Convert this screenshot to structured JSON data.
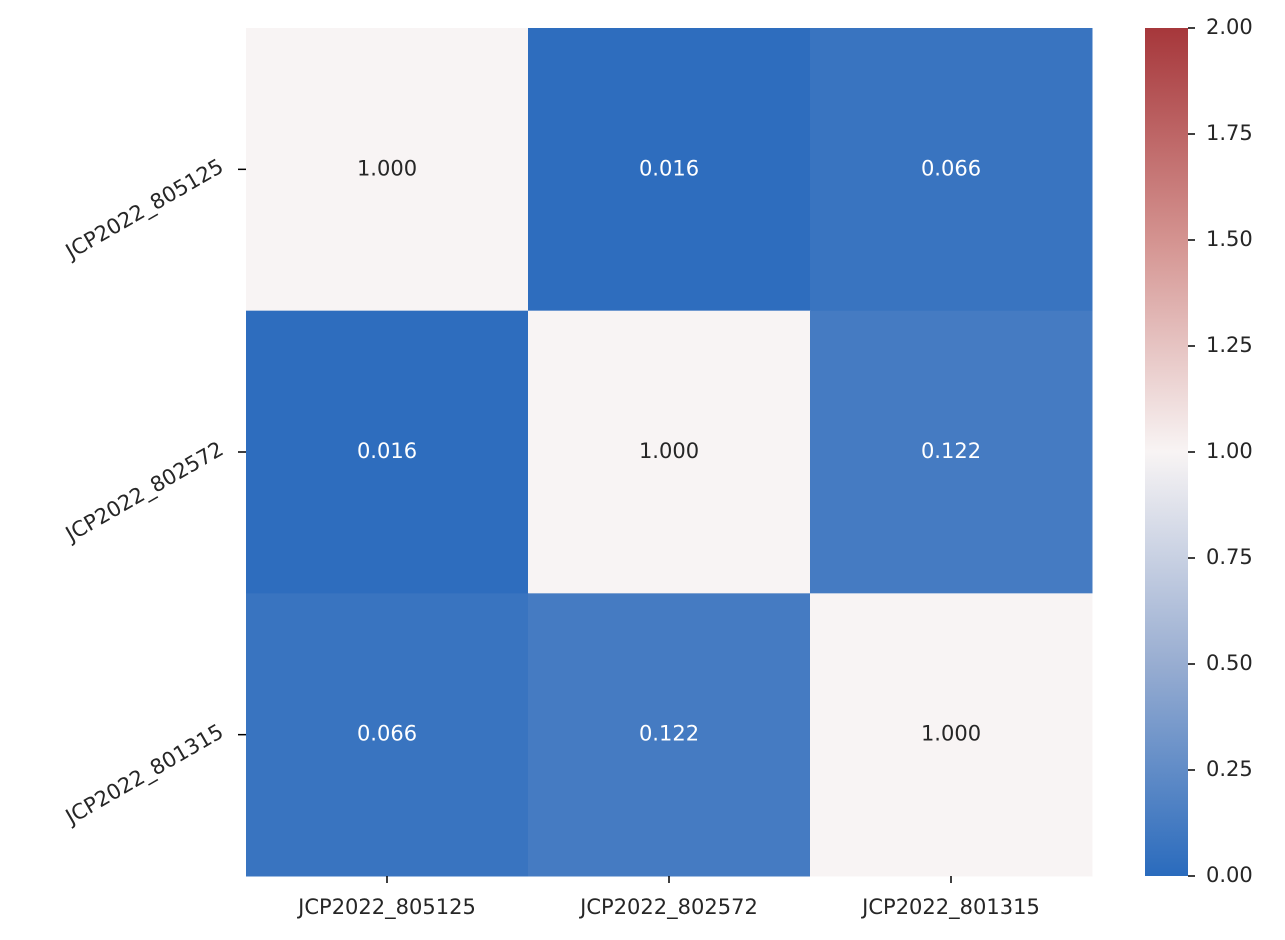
{
  "chart_data": {
    "type": "heatmap",
    "x_categories": [
      "JCP2022_805125",
      "JCP2022_802572",
      "JCP2022_801315"
    ],
    "y_categories": [
      "JCP2022_805125",
      "JCP2022_802572",
      "JCP2022_801315"
    ],
    "values": [
      [
        1.0,
        0.016,
        0.066
      ],
      [
        0.016,
        1.0,
        0.122
      ],
      [
        0.066,
        0.122,
        1.0
      ]
    ],
    "value_labels": [
      [
        "1.000",
        "0.016",
        "0.066"
      ],
      [
        "0.016",
        "1.000",
        "0.122"
      ],
      [
        "0.066",
        "0.122",
        "1.000"
      ]
    ],
    "colormap": [
      "#2a6bbd",
      "#98add1",
      "#f8f4f4",
      "#d49390",
      "#a6373b"
    ],
    "clim": [
      0,
      2
    ],
    "cticks": [
      {
        "value": 0,
        "label": "0.00"
      },
      {
        "value": 0.25,
        "label": "0.25"
      },
      {
        "value": 0.5,
        "label": "0.50"
      },
      {
        "value": 0.75,
        "label": "0.75"
      },
      {
        "value": 1,
        "label": "1.00"
      },
      {
        "value": 1.25,
        "label": "1.25"
      },
      {
        "value": 1.5,
        "label": "1.50"
      },
      {
        "value": 1.75,
        "label": "1.75"
      },
      {
        "value": 2,
        "label": "2.00"
      }
    ]
  }
}
